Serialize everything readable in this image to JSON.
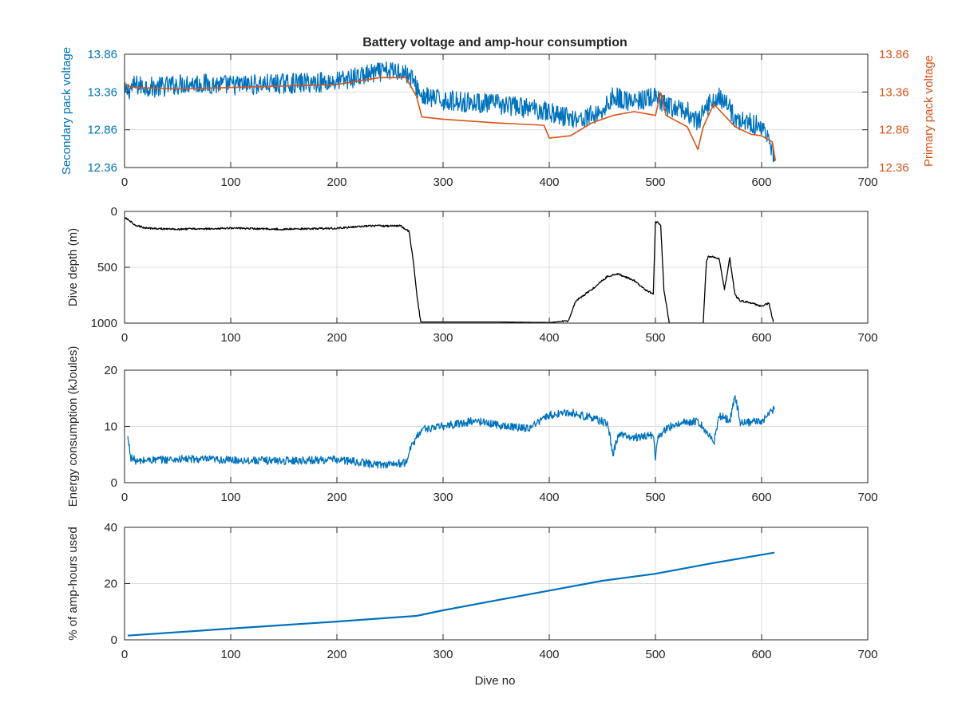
{
  "figure": {
    "title": "Battery voltage and amp-hour consumption",
    "xlabel": "Dive no"
  },
  "colors": {
    "blue": "#0072BD",
    "orange": "#D95319",
    "black": "#000000",
    "axis": "#262626",
    "grid": "#dcdcdc"
  },
  "chart_data": [
    {
      "type": "line",
      "title": "Battery voltage and amp-hour consumption",
      "xlabel": "",
      "ylabel": "Secondary pack voltage",
      "ylabel_right": "Primary pack voltage",
      "xlim": [
        0,
        700
      ],
      "ylim": [
        12.36,
        13.86
      ],
      "ylim_right": [
        12.36,
        13.86
      ],
      "xticks": [
        0,
        100,
        200,
        300,
        400,
        500,
        600,
        700
      ],
      "yticks": [
        12.36,
        12.86,
        13.36,
        13.86
      ],
      "grid": true,
      "series": [
        {
          "axis": "left",
          "color": "#0072BD",
          "noisy": true,
          "x": [
            0,
            10,
            30,
            60,
            100,
            150,
            200,
            240,
            260,
            270,
            280,
            300,
            350,
            395,
            410,
            430,
            450,
            460,
            480,
            500,
            505,
            515,
            530,
            540,
            550,
            560,
            570,
            575,
            590,
            600,
            608,
            612
          ],
          "y": [
            13.35,
            13.45,
            13.42,
            13.48,
            13.45,
            13.47,
            13.5,
            13.62,
            13.65,
            13.55,
            13.3,
            13.25,
            13.2,
            13.12,
            13.05,
            13.0,
            13.1,
            13.3,
            13.22,
            13.3,
            13.2,
            13.15,
            13.1,
            12.95,
            13.2,
            13.3,
            13.15,
            13.0,
            12.95,
            12.9,
            12.7,
            12.45
          ]
        },
        {
          "axis": "right",
          "color": "#D95319",
          "noisy": false,
          "x": [
            0,
            10,
            50,
            100,
            150,
            200,
            240,
            265,
            275,
            280,
            300,
            350,
            395,
            400,
            420,
            440,
            460,
            480,
            500,
            505,
            510,
            530,
            540,
            545,
            555,
            565,
            575,
            590,
            600,
            610,
            613
          ],
          "y": [
            13.45,
            13.42,
            13.4,
            13.42,
            13.44,
            13.46,
            13.55,
            13.55,
            13.3,
            13.03,
            13.0,
            12.95,
            12.92,
            12.75,
            12.78,
            12.95,
            13.05,
            13.1,
            13.05,
            13.35,
            13.05,
            12.9,
            12.6,
            12.9,
            13.2,
            13.05,
            12.9,
            12.8,
            12.78,
            12.7,
            12.45
          ]
        }
      ]
    },
    {
      "type": "line",
      "ylabel": "Dive depth (m)",
      "xlim": [
        0,
        700
      ],
      "ylim": [
        1000,
        0
      ],
      "y_reversed": true,
      "xticks": [
        0,
        100,
        200,
        300,
        400,
        500,
        600,
        700
      ],
      "yticks": [
        0,
        500,
        1000
      ],
      "grid": true,
      "series": [
        {
          "color": "#000000",
          "noisy": true,
          "x": [
            0,
            10,
            20,
            50,
            100,
            150,
            200,
            230,
            260,
            268,
            272,
            276,
            279,
            300,
            350,
            400,
            418,
            425,
            440,
            455,
            465,
            480,
            490,
            498,
            500,
            502,
            505,
            508,
            513,
            520,
            545,
            548,
            550,
            555,
            560,
            565,
            570,
            575,
            580,
            590,
            600,
            607,
            611
          ],
          "y": [
            50,
            120,
            150,
            160,
            150,
            160,
            150,
            130,
            130,
            180,
            450,
            800,
            990,
            990,
            990,
            995,
            980,
            800,
            700,
            580,
            560,
            620,
            700,
            740,
            100,
            100,
            130,
            700,
            1000,
            1000,
            1000,
            450,
            400,
            410,
            420,
            700,
            420,
            750,
            800,
            820,
            850,
            820,
            990
          ]
        }
      ]
    },
    {
      "type": "line",
      "ylabel": "Energy consumption (kJoules)",
      "xlim": [
        0,
        700
      ],
      "ylim": [
        0,
        20
      ],
      "xticks": [
        0,
        100,
        200,
        300,
        400,
        500,
        600,
        700
      ],
      "yticks": [
        0,
        10,
        20
      ],
      "grid": true,
      "series": [
        {
          "color": "#0072BD",
          "noisy": true,
          "x": [
            3,
            6,
            12,
            20,
            60,
            100,
            150,
            200,
            240,
            265,
            270,
            280,
            300,
            330,
            360,
            380,
            400,
            420,
            440,
            455,
            460,
            465,
            480,
            498,
            500,
            502,
            510,
            520,
            540,
            550,
            555,
            560,
            570,
            575,
            580,
            600,
            612
          ],
          "y": [
            8,
            4.5,
            3.7,
            4,
            4.2,
            4,
            3.9,
            4.1,
            3.2,
            3.5,
            6.5,
            9.5,
            10,
            11,
            10,
            9.7,
            12,
            12.5,
            11.5,
            10.5,
            5,
            8.5,
            8,
            8.5,
            4,
            8,
            9.5,
            10.5,
            11,
            8.5,
            7,
            12,
            11,
            15.5,
            10.5,
            11,
            13
          ]
        }
      ]
    },
    {
      "type": "line",
      "ylabel": "% of amp-hours used",
      "xlabel": "Dive no",
      "xlim": [
        0,
        700
      ],
      "ylim": [
        0,
        40
      ],
      "xticks": [
        0,
        100,
        200,
        300,
        400,
        500,
        600,
        700
      ],
      "yticks": [
        0,
        20,
        40
      ],
      "grid": true,
      "series": [
        {
          "color": "#0072BD",
          "noisy": false,
          "x": [
            3,
            100,
            200,
            275,
            300,
            350,
            400,
            450,
            500,
            550,
            612
          ],
          "y": [
            1.5,
            4,
            6.5,
            8.5,
            10.5,
            14,
            17.5,
            21,
            23.5,
            27,
            31
          ]
        }
      ]
    }
  ]
}
